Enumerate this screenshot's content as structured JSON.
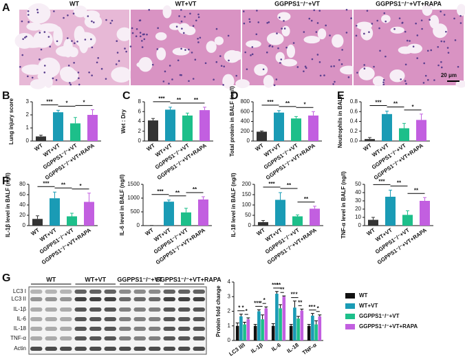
{
  "panels": [
    "A",
    "B",
    "C",
    "D",
    "E",
    "F",
    "G"
  ],
  "micrographs": {
    "titles": [
      "WT",
      "WT+VT",
      "GGPPS1⁻/⁻+VT",
      "GGPPS1⁻/⁻+VT+RAPA"
    ],
    "scale_bar": "20 μm"
  },
  "blot": {
    "groups": [
      "WT",
      "WT+VT",
      "GGPPS1⁻/⁻+VT",
      "GGPPS1⁻/⁻+VT+RAPA"
    ],
    "rows": [
      "LC3 I",
      "LC3 II",
      "IL-1β",
      "IL-6",
      "IL-18",
      "TNF-α",
      "Actin"
    ]
  },
  "chart_data": [
    {
      "type": "bar",
      "ylabel": "Lung injury score",
      "categories": [
        "WT",
        "WT+VT",
        "GGPPS1⁻/⁻+VT",
        "GGPPS1⁻/⁻+VT+RAPA"
      ],
      "values": [
        0.35,
        2.2,
        1.35,
        2.0
      ],
      "errors": [
        0.1,
        0.15,
        0.45,
        0.4
      ],
      "colors": [
        "#333333",
        "#1a9bb5",
        "#1dbf8a",
        "#c25fe0"
      ],
      "ylim": [
        0,
        3
      ],
      "yticks": [
        0,
        1,
        2,
        3
      ],
      "significance": [
        {
          "pair": [
            0,
            1
          ],
          "label": "***"
        },
        {
          "pair": [
            1,
            2
          ],
          "label": "*"
        },
        {
          "pair": [
            2,
            3
          ],
          "label": "*"
        }
      ]
    },
    {
      "type": "bar",
      "ylabel": "Wet : Dry",
      "categories": [
        "WT",
        "WT+VT",
        "GGPPS1⁻/⁻+VT",
        "GGPPS1⁻/⁻+VT+RAPA"
      ],
      "values": [
        4.2,
        6.4,
        5.2,
        6.3
      ],
      "errors": [
        0.4,
        0.5,
        0.5,
        0.6
      ],
      "colors": [
        "#333333",
        "#1a9bb5",
        "#1dbf8a",
        "#c25fe0"
      ],
      "ylim": [
        0,
        8
      ],
      "yticks": [
        0,
        2,
        4,
        6,
        8
      ],
      "significance": [
        {
          "pair": [
            0,
            1
          ],
          "label": "***"
        },
        {
          "pair": [
            1,
            2
          ],
          "label": "**"
        },
        {
          "pair": [
            2,
            3
          ],
          "label": "**"
        }
      ]
    },
    {
      "type": "bar",
      "ylabel": "Total protein in BALF (ng/l)",
      "categories": [
        "WT",
        "WT+VT",
        "GGPPS1⁻/⁻+VT",
        "GGPPS1⁻/⁻+VT+RAPA"
      ],
      "values": [
        190,
        580,
        460,
        520
      ],
      "errors": [
        15,
        40,
        40,
        80
      ],
      "colors": [
        "#333333",
        "#1a9bb5",
        "#1dbf8a",
        "#c25fe0"
      ],
      "ylim": [
        0,
        800
      ],
      "yticks": [
        0,
        200,
        400,
        600,
        800
      ],
      "significance": [
        {
          "pair": [
            0,
            1
          ],
          "label": "***"
        },
        {
          "pair": [
            1,
            2
          ],
          "label": "**"
        },
        {
          "pair": [
            2,
            3
          ],
          "label": "*"
        }
      ]
    },
    {
      "type": "bar",
      "ylabel": "Neutrophils in BALF",
      "categories": [
        "WT",
        "WT+VT",
        "GGPPS1⁻/⁻+VT",
        "GGPPS1⁻/⁻+VT+RAPA"
      ],
      "values": [
        0.04,
        0.55,
        0.26,
        0.43
      ],
      "errors": [
        0.03,
        0.06,
        0.1,
        0.12
      ],
      "colors": [
        "#333333",
        "#1a9bb5",
        "#1dbf8a",
        "#c25fe0"
      ],
      "ylim": [
        0,
        0.8
      ],
      "yticks": [
        {
          "value": 0,
          "label": "0.0"
        },
        0.2,
        0.4,
        0.6,
        0.8
      ],
      "significance": [
        {
          "pair": [
            0,
            1
          ],
          "label": "***"
        },
        {
          "pair": [
            1,
            2
          ],
          "label": "**"
        },
        {
          "pair": [
            2,
            3
          ],
          "label": "*"
        }
      ]
    },
    {
      "type": "bar",
      "ylabel": "IL-1β level in BALF (ng/l)",
      "categories": [
        "WT",
        "WT+VT",
        "GGPPS1⁻/⁻+VT",
        "GGPPS1⁻/⁻+VT+RAPA"
      ],
      "values": [
        13,
        53,
        18,
        46
      ],
      "errors": [
        6,
        12,
        6,
        17
      ],
      "colors": [
        "#333333",
        "#1a9bb5",
        "#1dbf8a",
        "#c25fe0"
      ],
      "ylim": [
        0,
        80
      ],
      "yticks": [
        0,
        20,
        40,
        60,
        80
      ],
      "significance": [
        {
          "pair": [
            0,
            1
          ],
          "label": "***"
        },
        {
          "pair": [
            1,
            2
          ],
          "label": "**"
        },
        {
          "pair": [
            2,
            3
          ],
          "label": "*"
        }
      ]
    },
    {
      "type": "bar",
      "ylabel": "IL-6 level in BALF (ng/l)",
      "categories": [
        "WT",
        "WT+VT",
        "GGPPS1⁻/⁻+VT",
        "GGPPS1⁻/⁻+VT+RAPA"
      ],
      "values": [
        5,
        870,
        480,
        950
      ],
      "errors": [
        3,
        60,
        150,
        100
      ],
      "colors": [
        "#333333",
        "#1a9bb5",
        "#1dbf8a",
        "#c25fe0"
      ],
      "ylim": [
        0,
        1500
      ],
      "yticks": [
        0,
        500,
        1000,
        1500
      ],
      "significance": [
        {
          "pair": [
            0,
            1
          ],
          "label": "***"
        },
        {
          "pair": [
            1,
            2
          ],
          "label": "**"
        },
        {
          "pair": [
            2,
            3
          ],
          "label": "**"
        }
      ]
    },
    {
      "type": "bar",
      "ylabel": "IL-18 level in BALF (ng/l)",
      "categories": [
        "WT",
        "WT+VT",
        "GGPPS1⁻/⁻+VT",
        "GGPPS1⁻/⁻+VT+RAPA"
      ],
      "values": [
        17,
        125,
        45,
        82
      ],
      "errors": [
        8,
        35,
        7,
        12
      ],
      "colors": [
        "#333333",
        "#1a9bb5",
        "#1dbf8a",
        "#c25fe0"
      ],
      "ylim": [
        0,
        200
      ],
      "yticks": [
        0,
        50,
        100,
        150,
        200
      ],
      "significance": [
        {
          "pair": [
            0,
            1
          ],
          "label": "***"
        },
        {
          "pair": [
            1,
            2
          ],
          "label": "**"
        },
        {
          "pair": [
            2,
            3
          ],
          "label": "**"
        }
      ]
    },
    {
      "type": "bar",
      "ylabel": "TNF-α level in BALF (ng/l)",
      "categories": [
        "WT",
        "WT+VT",
        "GGPPS1⁻/⁻+VT",
        "GGPPS1⁻/⁻+VT+RAPA"
      ],
      "values": [
        7,
        35,
        13,
        30
      ],
      "errors": [
        3,
        8,
        5,
        4
      ],
      "colors": [
        "#333333",
        "#1a9bb5",
        "#1dbf8a",
        "#c25fe0"
      ],
      "ylim": [
        0,
        50
      ],
      "yticks": [
        0,
        10,
        20,
        30,
        40,
        50
      ],
      "significance": [
        {
          "pair": [
            0,
            1
          ],
          "label": "***"
        },
        {
          "pair": [
            1,
            2
          ],
          "label": "**"
        },
        {
          "pair": [
            2,
            3
          ],
          "label": "**"
        }
      ]
    },
    {
      "type": "grouped-bar",
      "ylabel": "Protein fold change",
      "categories": [
        "LC3 II/I",
        "IL-1β",
        "IL-6",
        "IL-18",
        "TNF-α"
      ],
      "series": [
        {
          "name": "WT",
          "color": "#111111",
          "values": [
            1,
            1,
            1,
            1,
            1
          ],
          "errors": [
            0.2,
            0.1,
            0.15,
            0.1,
            0.1
          ]
        },
        {
          "name": "WT+VT",
          "color": "#1a9bb5",
          "values": [
            1.65,
            2.0,
            3.2,
            2.25,
            1.7
          ],
          "errors": [
            0.15,
            0.1,
            0.15,
            0.45,
            0.15
          ]
        },
        {
          "name": "GGPPS1⁻/⁻+VT",
          "color": "#1dbf8a",
          "values": [
            1.1,
            1.45,
            2.2,
            1.5,
            1.1
          ],
          "errors": [
            0.15,
            0.3,
            0.25,
            0.15,
            0.25
          ]
        },
        {
          "name": "GGPPS1⁻/⁻+VT+RAPA",
          "color": "#c25fe0",
          "values": [
            1.45,
            2.2,
            3.0,
            2.05,
            1.65
          ],
          "errors": [
            0.1,
            0.1,
            0.05,
            0.1,
            0.1
          ]
        }
      ],
      "ylim": [
        0,
        4
      ],
      "yticks": [
        0,
        1,
        2,
        3,
        4
      ],
      "significance": [
        {
          "group": 0,
          "pair": [
            0,
            1
          ],
          "label": "*"
        },
        {
          "group": 0,
          "pair": [
            1,
            2
          ],
          "label": "*"
        },
        {
          "group": 0,
          "pair": [
            2,
            3
          ],
          "label": "*"
        },
        {
          "group": 1,
          "pair": [
            0,
            1
          ],
          "label": "***"
        },
        {
          "group": 1,
          "pair": [
            1,
            2
          ],
          "label": "*"
        },
        {
          "group": 1,
          "pair": [
            2,
            3
          ],
          "label": "*"
        },
        {
          "group": 2,
          "pair": [
            0,
            1
          ],
          "label": "***"
        },
        {
          "group": 2,
          "pair": [
            1,
            2
          ],
          "label": "**"
        },
        {
          "group": 2,
          "pair": [
            2,
            3
          ],
          "label": "**"
        },
        {
          "group": 3,
          "pair": [
            0,
            1
          ],
          "label": "**"
        },
        {
          "group": 3,
          "pair": [
            1,
            2
          ],
          "label": "*"
        },
        {
          "group": 3,
          "pair": [
            2,
            3
          ],
          "label": "**"
        },
        {
          "group": 4,
          "pair": [
            0,
            1
          ],
          "label": "**"
        },
        {
          "group": 4,
          "pair": [
            1,
            2
          ],
          "label": "*"
        },
        {
          "group": 4,
          "pair": [
            2,
            3
          ],
          "label": "*"
        }
      ]
    }
  ]
}
